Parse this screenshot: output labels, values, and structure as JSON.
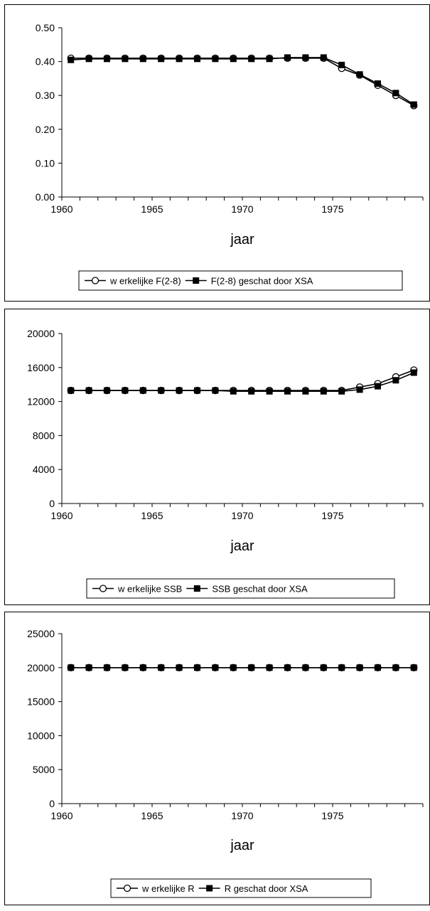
{
  "chart_data": [
    {
      "type": "line",
      "xlabel": "jaar",
      "x": [
        1960,
        1961,
        1962,
        1963,
        1964,
        1965,
        1966,
        1967,
        1968,
        1969,
        1970,
        1971,
        1972,
        1973,
        1974,
        1975,
        1976,
        1977,
        1978,
        1979
      ],
      "xticks": [
        1960,
        1965,
        1970,
        1975
      ],
      "xlim": [
        1960,
        1979
      ],
      "ylim": [
        0,
        0.5
      ],
      "yticks": [
        "0.00",
        "0.10",
        "0.20",
        "0.30",
        "0.40",
        "0.50"
      ],
      "series": [
        {
          "name": "w erkelijke F(2-8)",
          "marker": "circle",
          "values": [
            0.41,
            0.41,
            0.41,
            0.41,
            0.41,
            0.41,
            0.41,
            0.41,
            0.41,
            0.41,
            0.41,
            0.41,
            0.41,
            0.41,
            0.41,
            0.38,
            0.36,
            0.33,
            0.3,
            0.27
          ]
        },
        {
          "name": "F(2-8) geschat door XSA",
          "marker": "square",
          "values": [
            0.405,
            0.408,
            0.408,
            0.408,
            0.408,
            0.408,
            0.408,
            0.408,
            0.408,
            0.408,
            0.408,
            0.408,
            0.412,
            0.412,
            0.412,
            0.39,
            0.362,
            0.335,
            0.307,
            0.273
          ]
        }
      ]
    },
    {
      "type": "line",
      "xlabel": "jaar",
      "x": [
        1960,
        1961,
        1962,
        1963,
        1964,
        1965,
        1966,
        1967,
        1968,
        1969,
        1970,
        1971,
        1972,
        1973,
        1974,
        1975,
        1976,
        1977,
        1978,
        1979
      ],
      "xticks": [
        1960,
        1965,
        1970,
        1975
      ],
      "xlim": [
        1960,
        1979
      ],
      "ylim": [
        0,
        20000
      ],
      "yticks": [
        "0",
        "4000",
        "8000",
        "12000",
        "16000",
        "20000"
      ],
      "series": [
        {
          "name": "w erkelijke SSB",
          "marker": "circle",
          "values": [
            13300,
            13300,
            13300,
            13300,
            13300,
            13300,
            13300,
            13300,
            13300,
            13300,
            13300,
            13300,
            13300,
            13300,
            13300,
            13300,
            13700,
            14100,
            14900,
            15700
          ]
        },
        {
          "name": "SSB geschat door XSA",
          "marker": "square",
          "values": [
            13300,
            13300,
            13300,
            13300,
            13300,
            13300,
            13300,
            13300,
            13300,
            13200,
            13200,
            13200,
            13200,
            13200,
            13200,
            13200,
            13400,
            13800,
            14500,
            15400
          ]
        }
      ]
    },
    {
      "type": "line",
      "xlabel": "jaar",
      "x": [
        1960,
        1961,
        1962,
        1963,
        1964,
        1965,
        1966,
        1967,
        1968,
        1969,
        1970,
        1971,
        1972,
        1973,
        1974,
        1975,
        1976,
        1977,
        1978,
        1979
      ],
      "xticks": [
        1960,
        1965,
        1970,
        1975
      ],
      "xlim": [
        1960,
        1979
      ],
      "ylim": [
        0,
        25000
      ],
      "yticks": [
        "0",
        "5000",
        "10000",
        "15000",
        "20000",
        "25000"
      ],
      "series": [
        {
          "name": "w erkelijke R",
          "marker": "circle",
          "values": [
            20000,
            20000,
            20000,
            20000,
            20000,
            20000,
            20000,
            20000,
            20000,
            20000,
            20000,
            20000,
            20000,
            20000,
            20000,
            20000,
            20000,
            20000,
            20000,
            20000
          ]
        },
        {
          "name": "R geschat door XSA",
          "marker": "square",
          "values": [
            20000,
            20000,
            20000,
            20000,
            20000,
            20000,
            20000,
            20000,
            20000,
            20000,
            20000,
            20000,
            20000,
            20000,
            20000,
            20000,
            20000,
            20000,
            20000,
            20000
          ]
        }
      ]
    }
  ]
}
